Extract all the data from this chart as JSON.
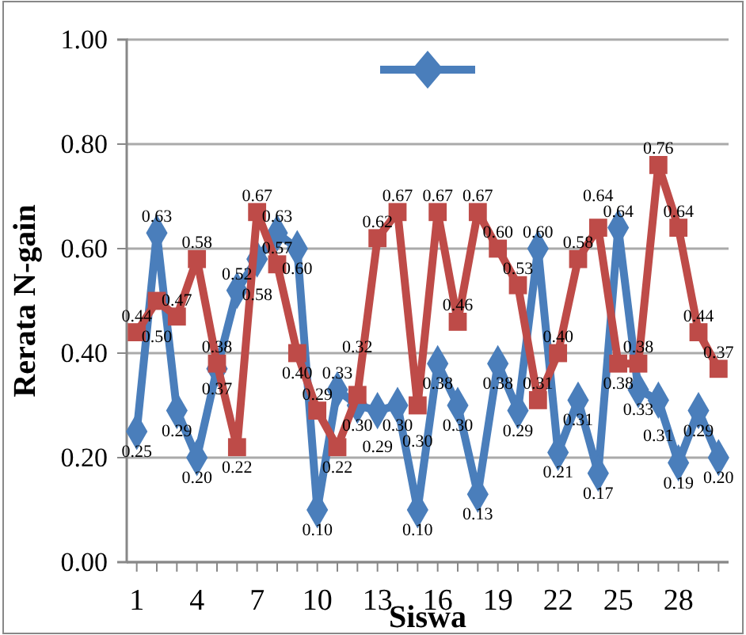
{
  "chart_data": {
    "type": "line",
    "xlabel": "Siswa",
    "ylabel": "Rerata N-gain",
    "categories": [
      "1",
      null,
      null,
      "4",
      null,
      null,
      "7",
      null,
      null,
      "10",
      null,
      null,
      "13",
      null,
      null,
      "16",
      null,
      null,
      "19",
      null,
      null,
      "22",
      null,
      null,
      "25",
      null,
      null,
      "28",
      null,
      null
    ],
    "series": [
      {
        "color": "#4a7ebb",
        "marker": "diamond",
        "values": [
          0.25,
          0.63,
          0.29,
          0.2,
          0.37,
          0.52,
          0.58,
          0.63,
          0.6,
          0.1,
          0.33,
          0.3,
          0.29,
          0.3,
          0.1,
          0.38,
          0.3,
          0.13,
          0.38,
          0.29,
          0.6,
          0.21,
          0.31,
          0.17,
          0.64,
          0.33,
          0.31,
          0.19,
          0.29,
          0.2
        ],
        "value_labels": [
          "0.25",
          "0.63",
          "0.29",
          "0.20",
          "0.37",
          "0.52",
          "0.58",
          "0.63",
          "0.60",
          "0.10",
          "0.33",
          "0.30",
          "0.29",
          "0.30",
          "0.10",
          "0.38",
          "0.30",
          "0.13",
          "0.38",
          "0.29",
          "0.60",
          "0.21",
          "0.31",
          "0.17",
          "0.64",
          "0.33",
          "0.31",
          "0.19",
          "0.29",
          "0.20"
        ]
      },
      {
        "color": "#be4b48",
        "marker": "square",
        "values": [
          0.44,
          0.5,
          0.47,
          0.58,
          0.38,
          0.22,
          0.67,
          0.57,
          0.4,
          0.29,
          0.22,
          0.32,
          0.62,
          0.67,
          0.3,
          0.67,
          0.46,
          0.67,
          0.6,
          0.53,
          0.31,
          0.4,
          0.58,
          0.64,
          0.38,
          0.38,
          0.76,
          0.64,
          0.44,
          0.37
        ],
        "value_labels": [
          "0.44",
          "0.50",
          "0.47",
          "0.58",
          "0.38",
          "0.22",
          "0.67",
          "0.57",
          "0.40",
          "0.29",
          "0.22",
          "0.32",
          "0.62",
          "0.67",
          "0.30",
          "0.67",
          "0.46",
          "0.67",
          "0.60",
          "0.53",
          "0.31",
          "0.40",
          "0.58",
          "0.64",
          "0.38",
          "0.38",
          "0.76",
          "0.64",
          "0.44",
          "0.37"
        ]
      }
    ],
    "ylim": [
      0,
      1
    ],
    "yticks": [
      {
        "value": 0,
        "label": "0.00"
      },
      {
        "value": 0.2,
        "label": "0.20"
      },
      {
        "value": 0.4,
        "label": "0.40"
      },
      {
        "value": 0.6,
        "label": "0.60"
      },
      {
        "value": 0.8,
        "label": "0.80"
      },
      {
        "value": 1,
        "label": "1.00"
      }
    ],
    "grid": "y",
    "line_style": "solid"
  }
}
